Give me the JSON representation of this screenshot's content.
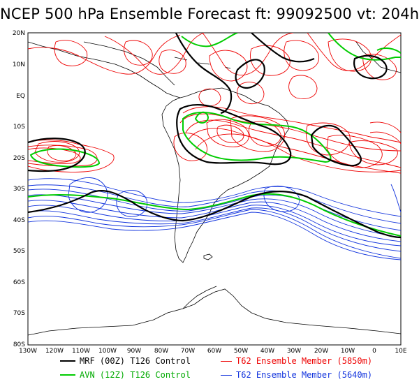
{
  "title": "NCEP 500 hPa Ensemble Forecast  ft: 99092500 vt: 204h",
  "latitude_labels": [
    "20N",
    "10N",
    "EQ",
    "10S",
    "20S",
    "30S",
    "40S",
    "50S",
    "60S",
    "70S",
    "80S"
  ],
  "longitude_labels": [
    "130W",
    "120W",
    "110W",
    "100W",
    "90W",
    "80W",
    "70W",
    "60W",
    "50W",
    "40W",
    "30W",
    "20W",
    "10W",
    "0",
    "10E"
  ],
  "legend": [
    {
      "label": "MRF (00Z) T126 Control",
      "color": "#000000",
      "text_color": "#000000"
    },
    {
      "label": "AVN (12Z) T126 Control",
      "color": "#00cc00",
      "text_color": "#00aa00"
    },
    {
      "label": "T62 Ensemble Member (5850m)",
      "color": "#ee0000",
      "text_color": "#ee0000"
    },
    {
      "label": "T62 Ensemble Member (5640m)",
      "color": "#1133dd",
      "text_color": "#1133dd"
    }
  ],
  "colors": {
    "mrf": "#000000",
    "avn": "#00cc00",
    "red": "#ee0000",
    "blue": "#1133dd",
    "coast": "#000000"
  }
}
